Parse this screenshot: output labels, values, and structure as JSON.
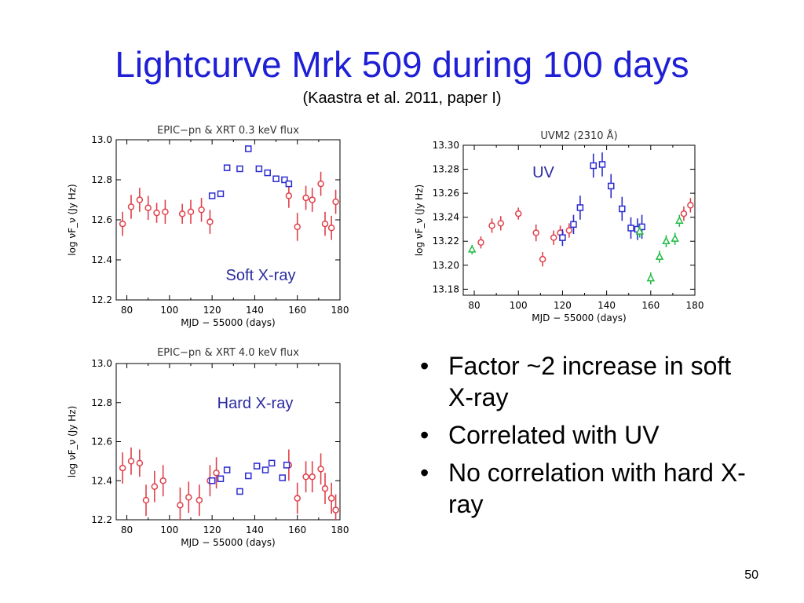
{
  "slide": {
    "title": "Lightcurve Mrk 509 during 100 days",
    "subtitle": "(Kaastra et al. 2011, paper I)",
    "bullets": [
      "Factor ~2 increase in soft X-ray",
      "Correlated with UV",
      "No correlation with hard X-ray"
    ],
    "page_number": "50"
  },
  "chart_data": [
    {
      "type": "scatter",
      "title": "EPIC−pn & XRT 0.3 keV flux",
      "annotation": "Soft X-ray",
      "xlabel": "MJD − 55000 (days)",
      "ylabel": "log νF_ν (Jy Hz)",
      "xlim": [
        75,
        180
      ],
      "ylim": [
        12.2,
        13.0
      ],
      "xticks": [
        "80",
        "100",
        "120",
        "140",
        "160",
        "180"
      ],
      "yticks": [
        "12.2",
        "12.4",
        "12.6",
        "12.8",
        "13.0"
      ],
      "grid": false,
      "colors": {
        "XRT": "#e0404a",
        "EPIC-pn": "#2b2bd0"
      },
      "series": [
        {
          "marker": "circle",
          "color": "#e0404a",
          "points": [
            {
              "x": 78,
              "y": 12.58,
              "err": 0.06
            },
            {
              "x": 82,
              "y": 12.665,
              "err": 0.06
            },
            {
              "x": 86,
              "y": 12.7,
              "err": 0.06
            },
            {
              "x": 90,
              "y": 12.66,
              "err": 0.06
            },
            {
              "x": 94,
              "y": 12.635,
              "err": 0.05
            },
            {
              "x": 98,
              "y": 12.64,
              "err": 0.06
            },
            {
              "x": 106,
              "y": 12.63,
              "err": 0.05
            },
            {
              "x": 110,
              "y": 12.64,
              "err": 0.06
            },
            {
              "x": 115,
              "y": 12.65,
              "err": 0.06
            },
            {
              "x": 119,
              "y": 12.59,
              "err": 0.06
            },
            {
              "x": 156,
              "y": 12.72,
              "err": 0.06
            },
            {
              "x": 160,
              "y": 12.565,
              "err": 0.07
            },
            {
              "x": 164,
              "y": 12.71,
              "err": 0.06
            },
            {
              "x": 167,
              "y": 12.7,
              "err": 0.06
            },
            {
              "x": 171,
              "y": 12.78,
              "err": 0.06
            },
            {
              "x": 173,
              "y": 12.58,
              "err": 0.06
            },
            {
              "x": 176,
              "y": 12.56,
              "err": 0.06
            },
            {
              "x": 178,
              "y": 12.69,
              "err": 0.06
            }
          ]
        },
        {
          "marker": "square",
          "color": "#2b2bd0",
          "points": [
            {
              "x": 120,
              "y": 12.72,
              "err": 0.01
            },
            {
              "x": 124,
              "y": 12.73,
              "err": 0.01
            },
            {
              "x": 127,
              "y": 12.86,
              "err": 0.01
            },
            {
              "x": 133,
              "y": 12.855,
              "err": 0.01
            },
            {
              "x": 137,
              "y": 12.955,
              "err": 0.01
            },
            {
              "x": 142,
              "y": 12.855,
              "err": 0.01
            },
            {
              "x": 146,
              "y": 12.835,
              "err": 0.01
            },
            {
              "x": 150,
              "y": 12.805,
              "err": 0.01
            },
            {
              "x": 154,
              "y": 12.8,
              "err": 0.01
            },
            {
              "x": 156,
              "y": 12.78,
              "err": 0.01
            }
          ]
        }
      ]
    },
    {
      "type": "scatter",
      "title": "UVM2 (2310 Å)",
      "annotation": "UV",
      "xlabel": "MJD − 55000 (days)",
      "ylabel": "log νF_ν (Jy Hz)",
      "xlim": [
        75,
        180
      ],
      "ylim": [
        13.175,
        13.3
      ],
      "xticks": [
        "80",
        "100",
        "120",
        "140",
        "160",
        "180"
      ],
      "yticks": [
        "13.18",
        "13.20",
        "13.22",
        "13.24",
        "13.26",
        "13.28",
        "13.30"
      ],
      "grid": false,
      "series": [
        {
          "marker": "circle",
          "color": "#e0404a",
          "points": [
            {
              "x": 83,
              "y": 13.219,
              "err": 0.005
            },
            {
              "x": 88,
              "y": 13.233,
              "err": 0.006
            },
            {
              "x": 92,
              "y": 13.235,
              "err": 0.006
            },
            {
              "x": 100,
              "y": 13.243,
              "err": 0.005
            },
            {
              "x": 108,
              "y": 13.227,
              "err": 0.007
            },
            {
              "x": 111,
              "y": 13.205,
              "err": 0.006
            },
            {
              "x": 116,
              "y": 13.223,
              "err": 0.006
            },
            {
              "x": 119,
              "y": 13.227,
              "err": 0.006
            },
            {
              "x": 123,
              "y": 13.229,
              "err": 0.006
            },
            {
              "x": 175,
              "y": 13.243,
              "err": 0.006
            },
            {
              "x": 178,
              "y": 13.25,
              "err": 0.006
            }
          ]
        },
        {
          "marker": "square",
          "color": "#2b2bd0",
          "points": [
            {
              "x": 120,
              "y": 13.223,
              "err": 0.007
            },
            {
              "x": 125,
              "y": 13.234,
              "err": 0.008
            },
            {
              "x": 128,
              "y": 13.248,
              "err": 0.01
            },
            {
              "x": 134,
              "y": 13.283,
              "err": 0.01
            },
            {
              "x": 138,
              "y": 13.284,
              "err": 0.01
            },
            {
              "x": 142,
              "y": 13.266,
              "err": 0.01
            },
            {
              "x": 147,
              "y": 13.247,
              "err": 0.01
            },
            {
              "x": 151,
              "y": 13.231,
              "err": 0.009
            },
            {
              "x": 154,
              "y": 13.23,
              "err": 0.009
            },
            {
              "x": 156,
              "y": 13.232,
              "err": 0.01
            }
          ]
        },
        {
          "marker": "triangle",
          "color": "#22bb44",
          "points": [
            {
              "x": 79,
              "y": 13.213,
              "err": 0.004
            },
            {
              "x": 155,
              "y": 13.228,
              "err": 0.005
            },
            {
              "x": 160,
              "y": 13.189,
              "err": 0.005
            },
            {
              "x": 164,
              "y": 13.207,
              "err": 0.005
            },
            {
              "x": 167,
              "y": 13.22,
              "err": 0.005
            },
            {
              "x": 171,
              "y": 13.222,
              "err": 0.005
            },
            {
              "x": 173,
              "y": 13.237,
              "err": 0.005
            }
          ]
        }
      ]
    },
    {
      "type": "scatter",
      "title": "EPIC−pn & XRT 4.0 keV flux",
      "annotation": "Hard X-ray",
      "xlabel": "MJD − 55000 (days)",
      "ylabel": "log νF_ν (Jy Hz)",
      "xlim": [
        75,
        180
      ],
      "ylim": [
        12.2,
        13.0
      ],
      "xticks": [
        "80",
        "100",
        "120",
        "140",
        "160",
        "180"
      ],
      "yticks": [
        "12.2",
        "12.4",
        "12.6",
        "12.8",
        "13.0"
      ],
      "grid": false,
      "series": [
        {
          "marker": "circle",
          "color": "#e0404a",
          "points": [
            {
              "x": 78,
              "y": 12.465,
              "err": 0.08
            },
            {
              "x": 82,
              "y": 12.5,
              "err": 0.07
            },
            {
              "x": 86,
              "y": 12.49,
              "err": 0.07
            },
            {
              "x": 89,
              "y": 12.3,
              "err": 0.08
            },
            {
              "x": 93,
              "y": 12.37,
              "err": 0.08
            },
            {
              "x": 97,
              "y": 12.4,
              "err": 0.08
            },
            {
              "x": 105,
              "y": 12.275,
              "err": 0.09
            },
            {
              "x": 109,
              "y": 12.315,
              "err": 0.08
            },
            {
              "x": 114,
              "y": 12.3,
              "err": 0.08
            },
            {
              "x": 119,
              "y": 12.4,
              "err": 0.08
            },
            {
              "x": 122,
              "y": 12.44,
              "err": 0.08
            },
            {
              "x": 156,
              "y": 12.48,
              "err": 0.08
            },
            {
              "x": 160,
              "y": 12.31,
              "err": 0.08
            },
            {
              "x": 164,
              "y": 12.42,
              "err": 0.08
            },
            {
              "x": 167,
              "y": 12.42,
              "err": 0.08
            },
            {
              "x": 171,
              "y": 12.46,
              "err": 0.08
            },
            {
              "x": 173,
              "y": 12.36,
              "err": 0.08
            },
            {
              "x": 176,
              "y": 12.31,
              "err": 0.08
            },
            {
              "x": 178,
              "y": 12.25,
              "err": 0.08
            }
          ]
        },
        {
          "marker": "square",
          "color": "#2b2bd0",
          "points": [
            {
              "x": 120,
              "y": 12.4,
              "err": 0.01
            },
            {
              "x": 124,
              "y": 12.41,
              "err": 0.01
            },
            {
              "x": 127,
              "y": 12.455,
              "err": 0.01
            },
            {
              "x": 133,
              "y": 12.345,
              "err": 0.01
            },
            {
              "x": 137,
              "y": 12.425,
              "err": 0.01
            },
            {
              "x": 141,
              "y": 12.475,
              "err": 0.01
            },
            {
              "x": 145,
              "y": 12.455,
              "err": 0.01
            },
            {
              "x": 148,
              "y": 12.49,
              "err": 0.01
            },
            {
              "x": 153,
              "y": 12.415,
              "err": 0.01
            },
            {
              "x": 155,
              "y": 12.48,
              "err": 0.01
            }
          ]
        }
      ]
    }
  ]
}
